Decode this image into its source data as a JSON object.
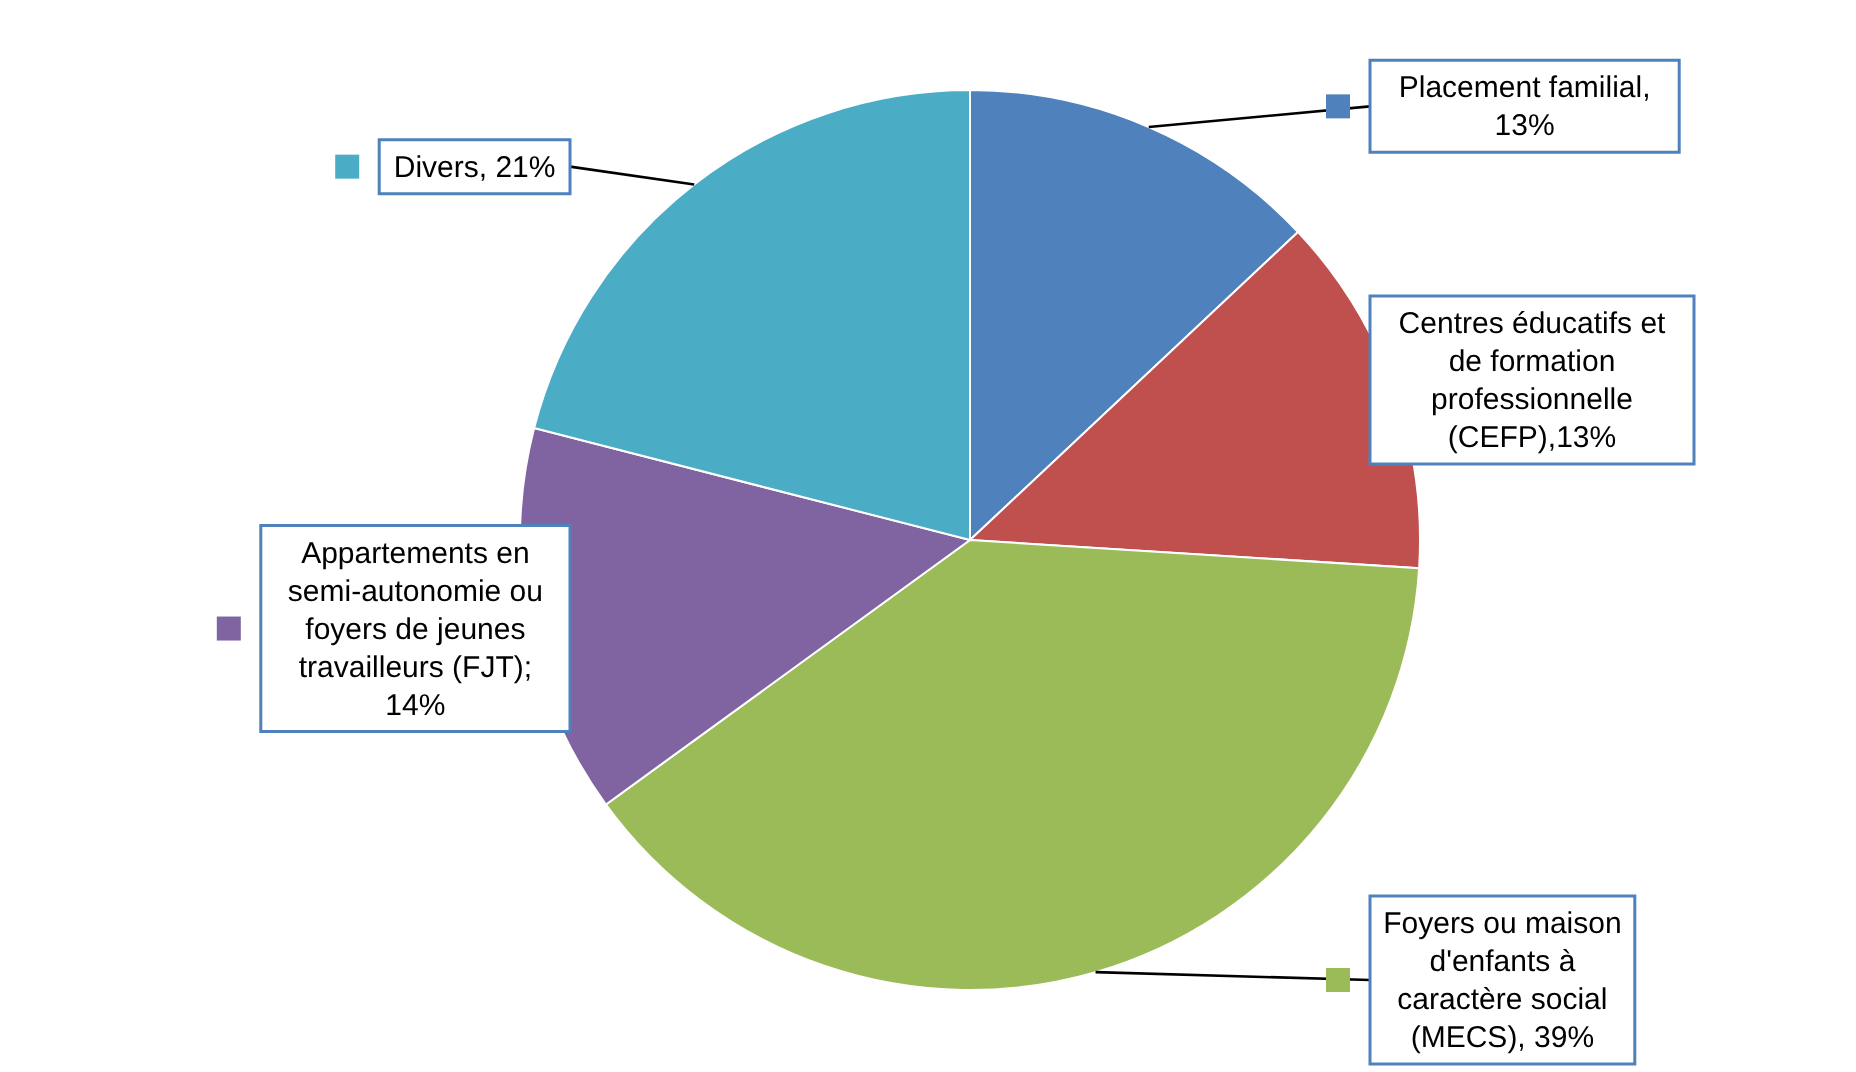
{
  "chart_data": {
    "type": "pie",
    "categories": [
      "Placement familial, 13%",
      "Centres éducatifs et de formation professionnelle (CEFP),13%",
      "Foyers ou maison d'enfants à caractère social (MECS), 39%",
      "Appartements en semi-autonomie ou foyers de jeunes travailleurs (FJT); 14%",
      "Divers, 21%"
    ],
    "values": [
      13,
      13,
      39,
      14,
      21
    ],
    "colors": [
      "#4f81bd",
      "#c0504d",
      "#9bbb59",
      "#8064a2",
      "#4bacc6"
    ],
    "legend": "right"
  }
}
